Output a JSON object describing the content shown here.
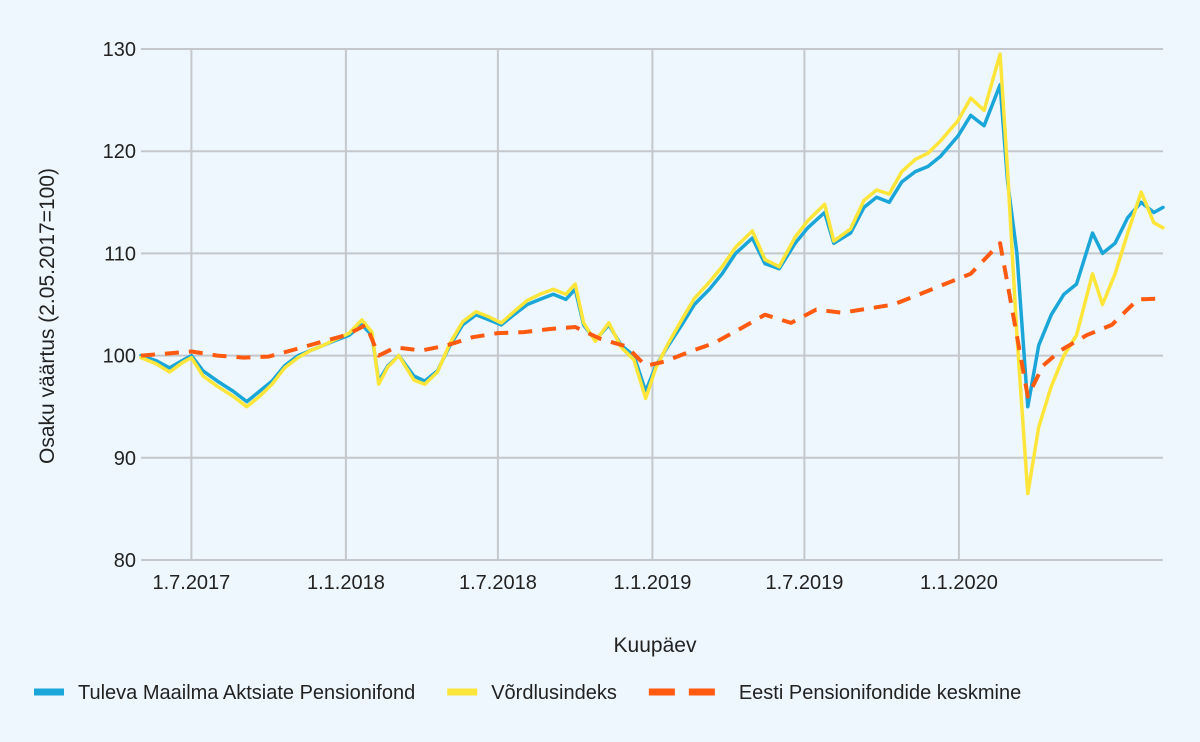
{
  "chart_data": {
    "type": "line",
    "title": "",
    "xlabel": "Kuupäev",
    "ylabel": "Osaku väärtus (2.05.2017=100)",
    "ylim": [
      80,
      130
    ],
    "yticks": [
      80,
      90,
      100,
      110,
      120,
      130
    ],
    "xlim": [
      "2017-05-02",
      "2020-08-31"
    ],
    "xticks": [
      {
        "date": "2017-07-01",
        "label": "1.7.2017"
      },
      {
        "date": "2018-01-01",
        "label": "1.1.2018"
      },
      {
        "date": "2018-07-01",
        "label": "1.7.2018"
      },
      {
        "date": "2019-01-01",
        "label": "1.1.2019"
      },
      {
        "date": "2019-07-01",
        "label": "1.7.2019"
      },
      {
        "date": "2020-01-01",
        "label": "1.1.2020"
      }
    ],
    "grid": true,
    "legend_position": "bottom",
    "series": [
      {
        "name": "Tuleva Maailma Aktsiate Pensionifond",
        "color": "#1aa6d9",
        "style": "solid",
        "points": [
          [
            "2017-05-02",
            100
          ],
          [
            "2017-05-20",
            99.5
          ],
          [
            "2017-06-05",
            98.8
          ],
          [
            "2017-06-20",
            99.5
          ],
          [
            "2017-07-01",
            100
          ],
          [
            "2017-07-15",
            98.5
          ],
          [
            "2017-08-01",
            97.5
          ],
          [
            "2017-08-20",
            96.5
          ],
          [
            "2017-09-05",
            95.5
          ],
          [
            "2017-09-20",
            96.5
          ],
          [
            "2017-10-05",
            97.5
          ],
          [
            "2017-10-20",
            99
          ],
          [
            "2017-11-05",
            100
          ],
          [
            "2017-11-20",
            100.5
          ],
          [
            "2017-12-05",
            101
          ],
          [
            "2017-12-20",
            101.5
          ],
          [
            "2018-01-05",
            102
          ],
          [
            "2018-01-20",
            103
          ],
          [
            "2018-02-01",
            102
          ],
          [
            "2018-02-09",
            97.5
          ],
          [
            "2018-02-20",
            99
          ],
          [
            "2018-03-05",
            100
          ],
          [
            "2018-03-23",
            98
          ],
          [
            "2018-04-05",
            97.5
          ],
          [
            "2018-04-20",
            98.5
          ],
          [
            "2018-05-05",
            101
          ],
          [
            "2018-05-20",
            103
          ],
          [
            "2018-06-05",
            104
          ],
          [
            "2018-06-20",
            103.5
          ],
          [
            "2018-07-05",
            103
          ],
          [
            "2018-07-20",
            104
          ],
          [
            "2018-08-05",
            105
          ],
          [
            "2018-08-20",
            105.5
          ],
          [
            "2018-09-05",
            106
          ],
          [
            "2018-09-20",
            105.5
          ],
          [
            "2018-10-01",
            106.5
          ],
          [
            "2018-10-11",
            103
          ],
          [
            "2018-10-25",
            101.5
          ],
          [
            "2018-11-10",
            103
          ],
          [
            "2018-11-25",
            101
          ],
          [
            "2018-12-10",
            100
          ],
          [
            "2018-12-24",
            96.5
          ],
          [
            "2019-01-05",
            99
          ],
          [
            "2019-01-20",
            101
          ],
          [
            "2019-02-05",
            103
          ],
          [
            "2019-02-20",
            105
          ],
          [
            "2019-03-10",
            106.5
          ],
          [
            "2019-03-25",
            108
          ],
          [
            "2019-04-10",
            110
          ],
          [
            "2019-04-30",
            111.5
          ],
          [
            "2019-05-15",
            109
          ],
          [
            "2019-06-01",
            108.5
          ],
          [
            "2019-06-20",
            111
          ],
          [
            "2019-07-05",
            112.5
          ],
          [
            "2019-07-25",
            114
          ],
          [
            "2019-08-05",
            111
          ],
          [
            "2019-08-25",
            112
          ],
          [
            "2019-09-10",
            114.5
          ],
          [
            "2019-09-25",
            115.5
          ],
          [
            "2019-10-10",
            115
          ],
          [
            "2019-10-25",
            117
          ],
          [
            "2019-11-10",
            118
          ],
          [
            "2019-11-25",
            118.5
          ],
          [
            "2019-12-10",
            119.5
          ],
          [
            "2019-12-31",
            121.5
          ],
          [
            "2020-01-15",
            123.5
          ],
          [
            "2020-01-31",
            122.5
          ],
          [
            "2020-02-19",
            126.5
          ],
          [
            "2020-02-28",
            117
          ],
          [
            "2020-03-10",
            110
          ],
          [
            "2020-03-23",
            95
          ],
          [
            "2020-04-05",
            101
          ],
          [
            "2020-04-20",
            104
          ],
          [
            "2020-05-05",
            106
          ],
          [
            "2020-05-20",
            107
          ],
          [
            "2020-06-08",
            112
          ],
          [
            "2020-06-20",
            110
          ],
          [
            "2020-07-05",
            111
          ],
          [
            "2020-07-20",
            113.5
          ],
          [
            "2020-08-05",
            115
          ],
          [
            "2020-08-20",
            114
          ],
          [
            "2020-08-31",
            114.5
          ]
        ]
      },
      {
        "name": "Võrdlusindeks",
        "color": "#fde53a",
        "style": "solid",
        "points": [
          [
            "2017-05-02",
            99.8
          ],
          [
            "2017-05-20",
            99.2
          ],
          [
            "2017-06-05",
            98.4
          ],
          [
            "2017-06-20",
            99.3
          ],
          [
            "2017-07-01",
            99.8
          ],
          [
            "2017-07-15",
            98
          ],
          [
            "2017-08-01",
            97
          ],
          [
            "2017-08-20",
            96
          ],
          [
            "2017-09-05",
            95
          ],
          [
            "2017-09-20",
            96
          ],
          [
            "2017-10-05",
            97.2
          ],
          [
            "2017-10-20",
            98.8
          ],
          [
            "2017-11-05",
            99.8
          ],
          [
            "2017-11-20",
            100.5
          ],
          [
            "2017-12-05",
            101
          ],
          [
            "2017-12-20",
            101.6
          ],
          [
            "2018-01-05",
            102.2
          ],
          [
            "2018-01-20",
            103.5
          ],
          [
            "2018-02-01",
            102.3
          ],
          [
            "2018-02-09",
            97.2
          ],
          [
            "2018-02-20",
            98.9
          ],
          [
            "2018-03-05",
            100
          ],
          [
            "2018-03-23",
            97.6
          ],
          [
            "2018-04-05",
            97.2
          ],
          [
            "2018-04-20",
            98.4
          ],
          [
            "2018-05-05",
            101.2
          ],
          [
            "2018-05-20",
            103.3
          ],
          [
            "2018-06-05",
            104.3
          ],
          [
            "2018-06-20",
            103.8
          ],
          [
            "2018-07-05",
            103.2
          ],
          [
            "2018-07-20",
            104.3
          ],
          [
            "2018-08-05",
            105.4
          ],
          [
            "2018-08-20",
            106
          ],
          [
            "2018-09-05",
            106.5
          ],
          [
            "2018-09-20",
            106
          ],
          [
            "2018-10-01",
            107
          ],
          [
            "2018-10-11",
            103.2
          ],
          [
            "2018-10-25",
            101.4
          ],
          [
            "2018-11-10",
            103.2
          ],
          [
            "2018-11-25",
            100.8
          ],
          [
            "2018-12-10",
            99.6
          ],
          [
            "2018-12-24",
            95.8
          ],
          [
            "2019-01-05",
            98.8
          ],
          [
            "2019-01-20",
            101.2
          ],
          [
            "2019-02-05",
            103.5
          ],
          [
            "2019-02-20",
            105.6
          ],
          [
            "2019-03-10",
            107.2
          ],
          [
            "2019-03-25",
            108.7
          ],
          [
            "2019-04-10",
            110.6
          ],
          [
            "2019-04-30",
            112.2
          ],
          [
            "2019-05-15",
            109.4
          ],
          [
            "2019-06-01",
            108.7
          ],
          [
            "2019-06-20",
            111.6
          ],
          [
            "2019-07-05",
            113.2
          ],
          [
            "2019-07-25",
            114.8
          ],
          [
            "2019-08-05",
            111.2
          ],
          [
            "2019-08-25",
            112.4
          ],
          [
            "2019-09-10",
            115.2
          ],
          [
            "2019-09-25",
            116.2
          ],
          [
            "2019-10-10",
            115.8
          ],
          [
            "2019-10-25",
            118
          ],
          [
            "2019-11-10",
            119.2
          ],
          [
            "2019-11-25",
            119.8
          ],
          [
            "2019-12-10",
            121
          ],
          [
            "2019-12-31",
            123
          ],
          [
            "2020-01-15",
            125.2
          ],
          [
            "2020-01-31",
            124
          ],
          [
            "2020-02-19",
            129.5
          ],
          [
            "2020-02-28",
            118
          ],
          [
            "2020-03-10",
            102
          ],
          [
            "2020-03-23",
            86.5
          ],
          [
            "2020-04-05",
            93
          ],
          [
            "2020-04-20",
            97
          ],
          [
            "2020-05-05",
            100
          ],
          [
            "2020-05-20",
            102
          ],
          [
            "2020-06-08",
            108
          ],
          [
            "2020-06-20",
            105
          ],
          [
            "2020-07-05",
            108
          ],
          [
            "2020-07-20",
            112
          ],
          [
            "2020-08-05",
            116
          ],
          [
            "2020-08-20",
            113
          ],
          [
            "2020-08-31",
            112.5
          ]
        ]
      },
      {
        "name": "Eesti Pensionifondide keskmine",
        "color": "#ff5a10",
        "style": "dashed",
        "points": [
          [
            "2017-05-02",
            100
          ],
          [
            "2017-06-01",
            100.2
          ],
          [
            "2017-07-01",
            100.4
          ],
          [
            "2017-08-01",
            100
          ],
          [
            "2017-09-01",
            99.8
          ],
          [
            "2017-10-01",
            99.9
          ],
          [
            "2017-11-01",
            100.6
          ],
          [
            "2017-12-01",
            101.3
          ],
          [
            "2018-01-01",
            102
          ],
          [
            "2018-01-25",
            103
          ],
          [
            "2018-02-09",
            100
          ],
          [
            "2018-03-01",
            100.8
          ],
          [
            "2018-04-01",
            100.5
          ],
          [
            "2018-05-01",
            101
          ],
          [
            "2018-06-01",
            101.8
          ],
          [
            "2018-07-01",
            102.2
          ],
          [
            "2018-08-01",
            102.3
          ],
          [
            "2018-09-01",
            102.6
          ],
          [
            "2018-10-01",
            102.8
          ],
          [
            "2018-11-01",
            101.6
          ],
          [
            "2018-12-01",
            100.9
          ],
          [
            "2018-12-24",
            99
          ],
          [
            "2019-01-15",
            99.4
          ],
          [
            "2019-02-15",
            100.4
          ],
          [
            "2019-03-15",
            101.2
          ],
          [
            "2019-04-15",
            102.6
          ],
          [
            "2019-05-15",
            104
          ],
          [
            "2019-06-15",
            103.2
          ],
          [
            "2019-07-15",
            104.5
          ],
          [
            "2019-08-15",
            104.2
          ],
          [
            "2019-09-15",
            104.6
          ],
          [
            "2019-10-15",
            105
          ],
          [
            "2019-11-15",
            106
          ],
          [
            "2019-12-15",
            107
          ],
          [
            "2020-01-15",
            108
          ],
          [
            "2020-02-19",
            111
          ],
          [
            "2020-02-28",
            107
          ],
          [
            "2020-03-23",
            96
          ],
          [
            "2020-04-10",
            99
          ],
          [
            "2020-05-01",
            100.5
          ],
          [
            "2020-06-01",
            102
          ],
          [
            "2020-07-01",
            103
          ],
          [
            "2020-08-01",
            105.5
          ],
          [
            "2020-08-31",
            105.6
          ]
        ]
      }
    ]
  }
}
